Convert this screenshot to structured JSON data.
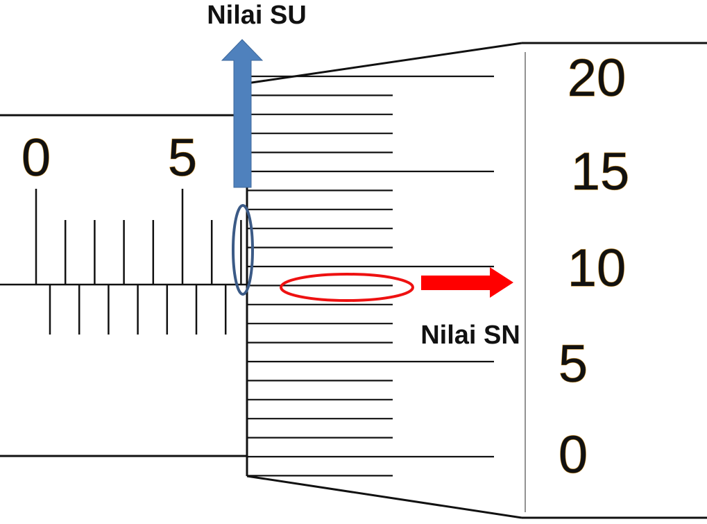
{
  "labels": {
    "main_scale_value": "Nilai SU",
    "thimble_scale_value": "Nilai SN"
  },
  "main_scale": {
    "numbers": [
      "0",
      "5"
    ],
    "upper_ticks": 8,
    "lower_ticks": 7
  },
  "thimble_scale": {
    "numbers": [
      "20",
      "15",
      "10",
      "5",
      "0"
    ],
    "divisions": 21
  },
  "colors": {
    "blue_arrow": "#4f81bd",
    "blue_marker": "#3b5a86",
    "red_marker": "#ee1111",
    "red_arrow": "#ff0000",
    "line": "#111111",
    "digit_outline": "#c98a1e"
  }
}
